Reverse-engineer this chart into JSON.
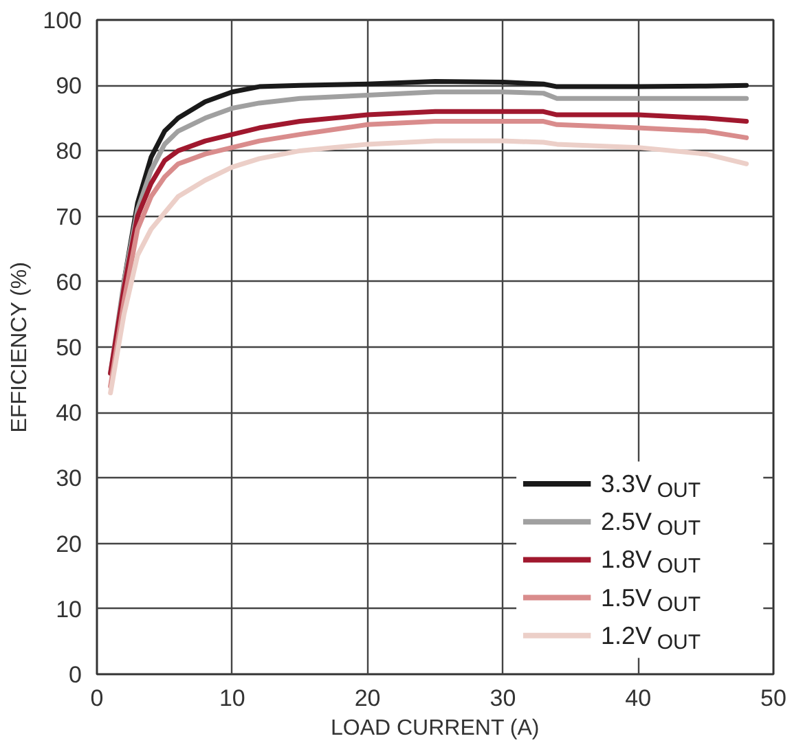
{
  "chart_data": {
    "type": "line",
    "xlabel": "LOAD CURRENT (A)",
    "ylabel": "EFFICIENCY (%)",
    "xlim": [
      0,
      50
    ],
    "ylim": [
      0,
      100
    ],
    "xticks": [
      0,
      10,
      20,
      30,
      40,
      50
    ],
    "yticks": [
      0,
      10,
      20,
      30,
      40,
      50,
      60,
      70,
      80,
      90,
      100
    ],
    "grid": true,
    "legend": "bottom right",
    "line_style": "solid",
    "x": [
      1,
      2,
      3,
      4,
      5,
      6,
      8,
      10,
      12,
      15,
      20,
      25,
      30,
      33,
      34,
      40,
      45,
      48
    ],
    "series": [
      {
        "name": "3.3V$_{OUT}$",
        "color": "#1a1a1a",
        "values": [
          null,
          60,
          72,
          79,
          83,
          85,
          87.5,
          89,
          89.8,
          90,
          90.2,
          90.6,
          90.5,
          90.2,
          89.8,
          89.8,
          89.9,
          90
        ]
      },
      {
        "name": "2.5V$_{OUT}$",
        "color": "#a0a0a0",
        "values": [
          46,
          60,
          71,
          77,
          81,
          83,
          85,
          86.5,
          87.3,
          88,
          88.5,
          89,
          89,
          88.8,
          88,
          88,
          88,
          88
        ]
      },
      {
        "name": "1.8V$_{OUT}$",
        "color": "#a0182e",
        "values": [
          46,
          59,
          70,
          75,
          78.5,
          80,
          81.5,
          82.5,
          83.5,
          84.5,
          85.5,
          86,
          86,
          86,
          85.5,
          85.5,
          85,
          84.5
        ]
      },
      {
        "name": "1.5V$_{OUT}$",
        "color": "#d98c8c",
        "values": [
          44,
          57,
          68,
          73,
          76,
          78,
          79.5,
          80.5,
          81.5,
          82.5,
          84,
          84.5,
          84.5,
          84.5,
          84,
          83.5,
          83,
          82
        ]
      },
      {
        "name": "1.2V$_{OUT}$",
        "color": "#eccfc8",
        "values": [
          43,
          55,
          64,
          68,
          70.5,
          73,
          75.5,
          77.5,
          78.8,
          80,
          81,
          81.5,
          81.5,
          81.3,
          81,
          80.5,
          79.5,
          78
        ]
      }
    ]
  }
}
